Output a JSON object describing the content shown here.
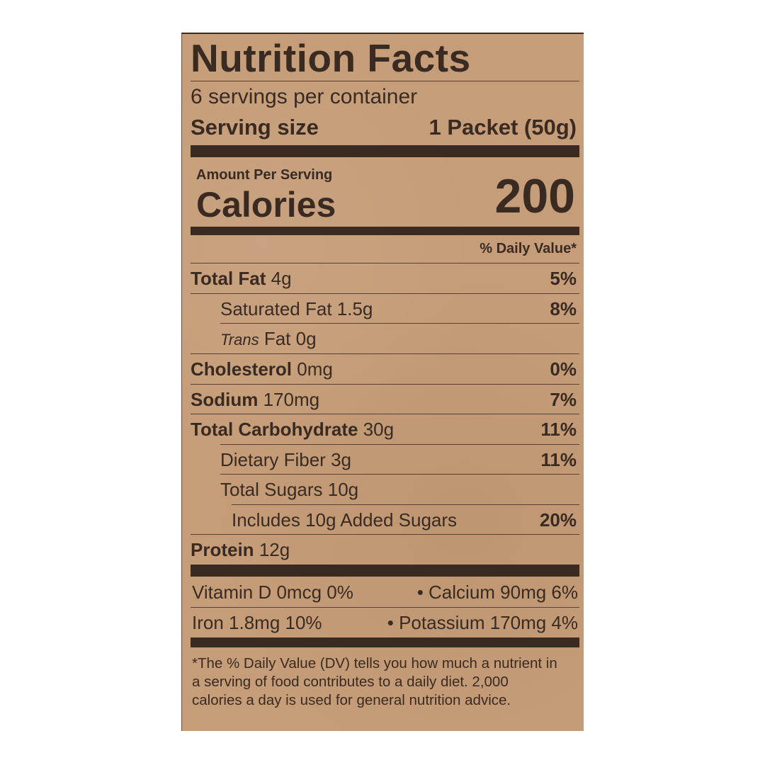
{
  "title": "Nutrition Facts",
  "servings_per_container": "6 servings per container",
  "serving_size": {
    "label": "Serving size",
    "value": "1 Packet (50g)"
  },
  "amount_per_serving": "Amount Per Serving",
  "calories": {
    "label": "Calories",
    "value": "200"
  },
  "daily_value_header": "% Daily Value*",
  "nutrients": [
    {
      "name": "Total Fat",
      "amount": "4g",
      "dv": "5%"
    },
    {
      "name": "Saturated Fat",
      "amount": "1.5g",
      "dv": "8%"
    },
    {
      "name_italic": "Trans",
      "name": "Fat",
      "amount": "0g",
      "dv": ""
    },
    {
      "name": "Cholesterol",
      "amount": "0mg",
      "dv": "0%"
    },
    {
      "name": "Sodium",
      "amount": "170mg",
      "dv": "7%"
    },
    {
      "name": "Total Carbohydrate",
      "amount": "30g",
      "dv": "11%"
    },
    {
      "name": "Dietary Fiber",
      "amount": "3g",
      "dv": "11%"
    },
    {
      "name": "Total Sugars",
      "amount": "10g",
      "dv": ""
    },
    {
      "name": "Includes 10g Added Sugars",
      "amount": "",
      "dv": "20%"
    },
    {
      "name": "Protein",
      "amount": "12g",
      "dv": ""
    }
  ],
  "vitamins": [
    {
      "left": "Vitamin D 0mcg 0%",
      "right": "• Calcium 90mg 6%"
    },
    {
      "left": "Iron 1.8mg 10%",
      "right": "• Potassium 170mg 4%"
    }
  ],
  "footnote": "*The % Daily Value (DV) tells you how much a nutrient in a serving of food contributes to a daily diet. 2,000 calories a day is used for general nutrition advice.",
  "colors": {
    "background": "#c59d78",
    "ink": "#3a2b22"
  }
}
